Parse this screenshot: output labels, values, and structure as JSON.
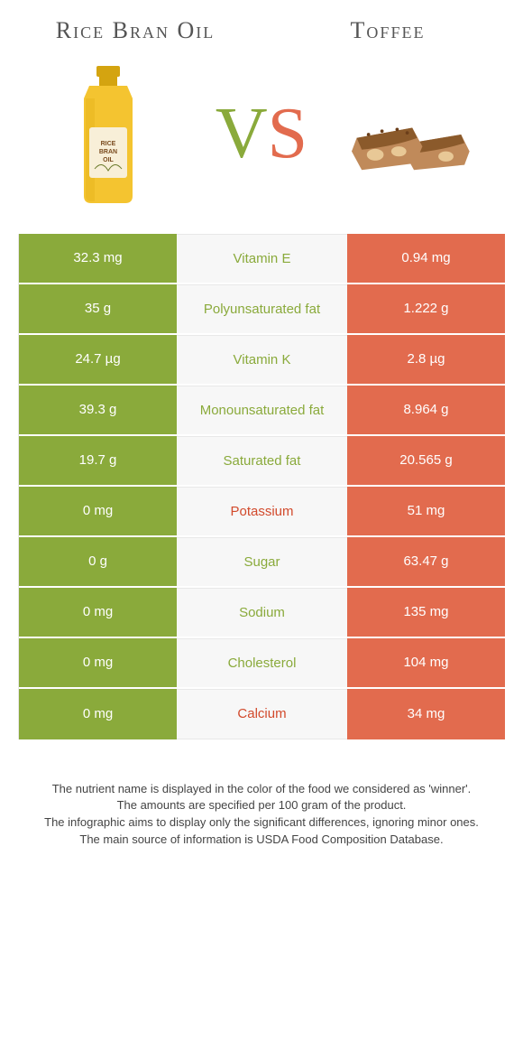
{
  "colors": {
    "left": "#8AAA3B",
    "right": "#E26B4E",
    "mid_bg": "#f7f7f7",
    "mid_winner_left": "#8AAA3B",
    "mid_winner_right": "#D24A2C"
  },
  "header": {
    "left_title": "Rice Bran Oil",
    "right_title": "Toffee",
    "vs_v": "V",
    "vs_s": "S"
  },
  "rows": [
    {
      "nutrient": "Vitamin E",
      "left": "32.3 mg",
      "right": "0.94 mg",
      "winner": "left"
    },
    {
      "nutrient": "Polyunsaturated fat",
      "left": "35 g",
      "right": "1.222 g",
      "winner": "left"
    },
    {
      "nutrient": "Vitamin K",
      "left": "24.7 µg",
      "right": "2.8 µg",
      "winner": "left"
    },
    {
      "nutrient": "Monounsaturated fat",
      "left": "39.3 g",
      "right": "8.964 g",
      "winner": "left"
    },
    {
      "nutrient": "Saturated fat",
      "left": "19.7 g",
      "right": "20.565 g",
      "winner": "left"
    },
    {
      "nutrient": "Potassium",
      "left": "0 mg",
      "right": "51 mg",
      "winner": "right"
    },
    {
      "nutrient": "Sugar",
      "left": "0 g",
      "right": "63.47 g",
      "winner": "left"
    },
    {
      "nutrient": "Sodium",
      "left": "0 mg",
      "right": "135 mg",
      "winner": "left"
    },
    {
      "nutrient": "Cholesterol",
      "left": "0 mg",
      "right": "104 mg",
      "winner": "left"
    },
    {
      "nutrient": "Calcium",
      "left": "0 mg",
      "right": "34 mg",
      "winner": "right"
    }
  ],
  "footnotes": [
    "The nutrient name is displayed in the color of the food we considered as 'winner'.",
    "The amounts are specified per 100 gram of the product.",
    "The infographic aims to display only the significant differences, ignoring minor ones.",
    "The main source of information is USDA Food Composition Database."
  ]
}
